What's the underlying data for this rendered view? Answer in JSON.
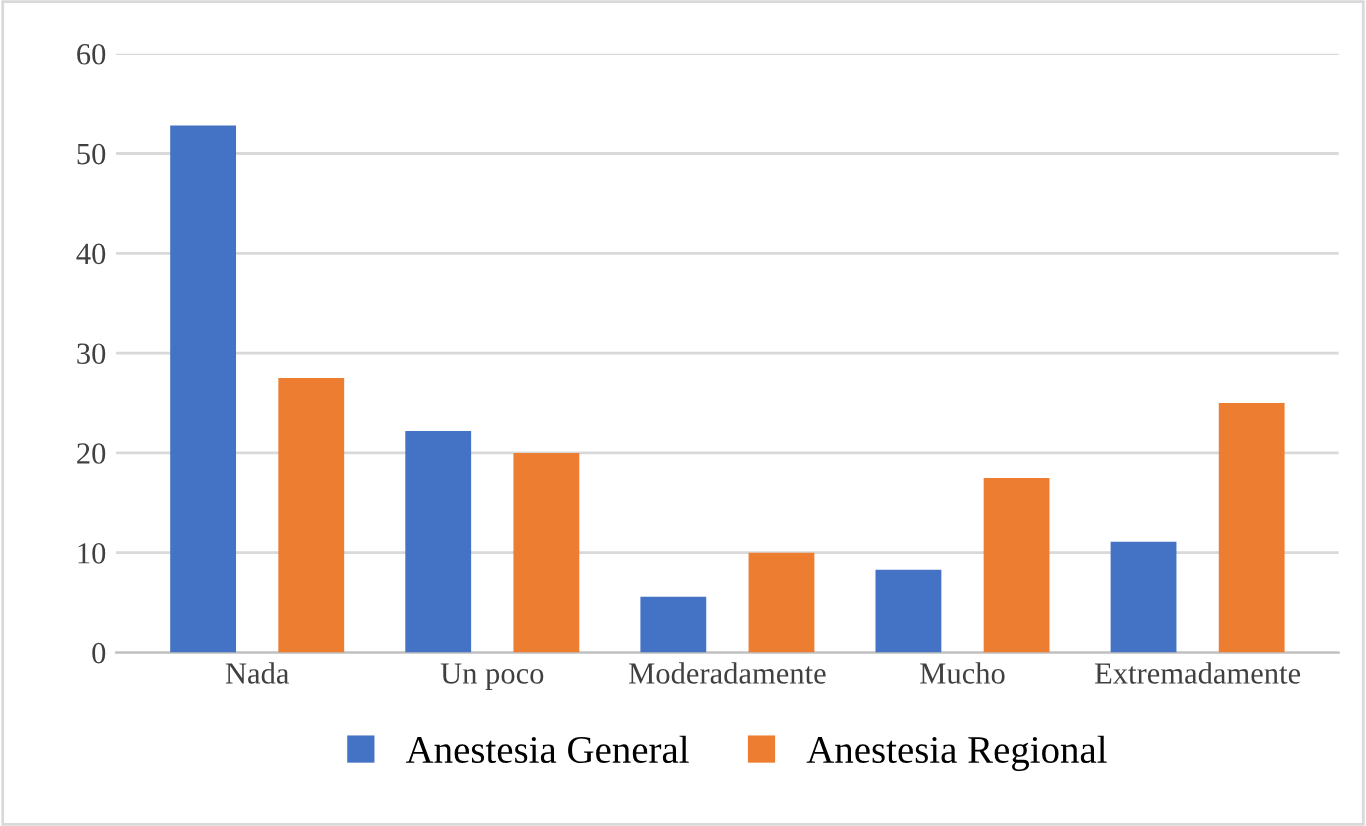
{
  "chart_data": {
    "type": "bar",
    "categories": [
      "Nada",
      "Un poco",
      "Moderadamente",
      "Mucho",
      "Extremadamente"
    ],
    "series": [
      {
        "name": "Anestesia General",
        "color": "#4472c4",
        "values": [
          52.8,
          22.2,
          5.6,
          8.3,
          11.1
        ]
      },
      {
        "name": "Anestesia Regional",
        "color": "#ed7d31",
        "values": [
          27.5,
          20,
          10,
          17.5,
          25
        ]
      }
    ],
    "ylim": [
      0,
      60
    ],
    "yticks": [
      0,
      10,
      20,
      30,
      40,
      50,
      60
    ],
    "grid": "y",
    "legend": "bottom"
  }
}
